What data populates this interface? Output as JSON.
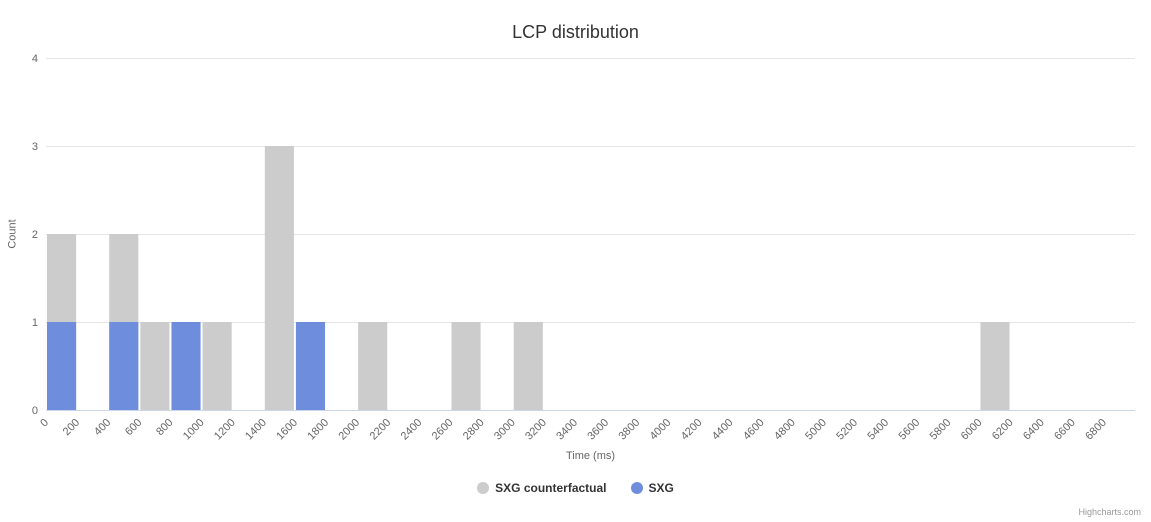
{
  "title": "LCP distribution",
  "credits": "Highcharts.com",
  "chart_data": {
    "type": "bar",
    "title": "LCP distribution",
    "xlabel": "Time (ms)",
    "ylabel": "Count",
    "ylim": [
      0,
      4
    ],
    "xlim": [
      0,
      7000
    ],
    "bin_width": 200,
    "grid": true,
    "legend_position": "bottom",
    "y_ticks": [
      0,
      1,
      2,
      3,
      4
    ],
    "x_ticks": [
      0,
      200,
      400,
      600,
      800,
      1000,
      1200,
      1400,
      1600,
      1800,
      2000,
      2200,
      2400,
      2600,
      2800,
      3000,
      3200,
      3400,
      3600,
      3800,
      4000,
      4200,
      4400,
      4600,
      4800,
      5000,
      5200,
      5400,
      5600,
      5800,
      6000,
      6200,
      6400,
      6600,
      6800
    ],
    "series": [
      {
        "name": "SXG counterfactual",
        "color": "#cccccc",
        "points": [
          {
            "x": 0,
            "y": 2
          },
          {
            "x": 400,
            "y": 2
          },
          {
            "x": 600,
            "y": 1
          },
          {
            "x": 1000,
            "y": 1
          },
          {
            "x": 1400,
            "y": 3
          },
          {
            "x": 2000,
            "y": 1
          },
          {
            "x": 2600,
            "y": 1
          },
          {
            "x": 3000,
            "y": 1
          },
          {
            "x": 6000,
            "y": 1
          }
        ]
      },
      {
        "name": "SXG",
        "color": "#6e8edd",
        "points": [
          {
            "x": 0,
            "y": 1
          },
          {
            "x": 400,
            "y": 1
          },
          {
            "x": 800,
            "y": 1
          },
          {
            "x": 1600,
            "y": 1
          }
        ]
      }
    ]
  }
}
